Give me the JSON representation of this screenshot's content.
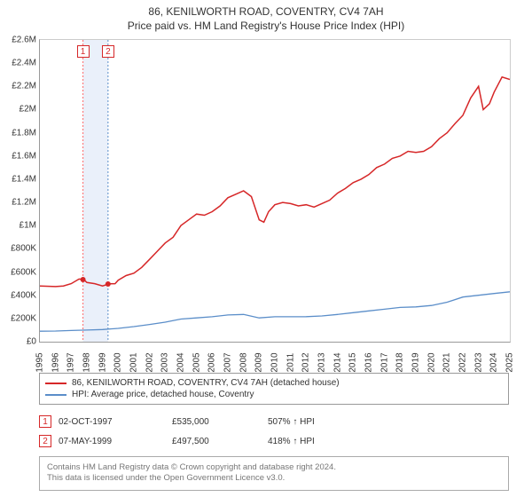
{
  "title": {
    "address": "86, KENILWORTH ROAD, COVENTRY, CV4 7AH",
    "subtitle": "Price paid vs. HM Land Registry's House Price Index (HPI)"
  },
  "chart": {
    "type": "line",
    "background_color": "#ffffff",
    "axis_color": "#999999",
    "label_fontsize": 10,
    "x_min": 1995,
    "x_max": 2025,
    "y_min": 0,
    "y_max": 2600000,
    "y_ticks": [
      0,
      200000,
      400000,
      600000,
      800000,
      1000000,
      1200000,
      1400000,
      1600000,
      1800000,
      2000000,
      2200000,
      2400000,
      2600000
    ],
    "y_tick_labels": [
      "£0",
      "£200K",
      "£400K",
      "£600K",
      "£800K",
      "£1M",
      "£1.2M",
      "£1.4M",
      "£1.6M",
      "£1.8M",
      "£2M",
      "£2.2M",
      "£2.4M",
      "£2.6M"
    ],
    "x_ticks": [
      1995,
      1996,
      1997,
      1998,
      1999,
      2000,
      2001,
      2002,
      2003,
      2004,
      2005,
      2006,
      2007,
      2008,
      2009,
      2010,
      2011,
      2012,
      2013,
      2014,
      2015,
      2016,
      2017,
      2018,
      2019,
      2020,
      2021,
      2022,
      2023,
      2024,
      2025
    ],
    "x_tick_labels": [
      "1995",
      "1996",
      "1997",
      "1998",
      "1999",
      "2000",
      "2001",
      "2002",
      "2003",
      "2004",
      "2005",
      "2006",
      "2007",
      "2008",
      "2009",
      "2010",
      "2011",
      "2012",
      "2013",
      "2014",
      "2015",
      "2016",
      "2017",
      "2018",
      "2019",
      "2020",
      "2021",
      "2022",
      "2023",
      "2024",
      "2025"
    ],
    "series": [
      {
        "name": "property",
        "label": "86, KENILWORTH ROAD, COVENTRY, CV4 7AH (detached house)",
        "color": "#d62728",
        "line_width": 1.5,
        "data": [
          [
            1995,
            480000
          ],
          [
            1996,
            475000
          ],
          [
            1996.5,
            480000
          ],
          [
            1997,
            500000
          ],
          [
            1997.5,
            540000
          ],
          [
            1997.8,
            535000
          ],
          [
            1998,
            510000
          ],
          [
            1998.5,
            500000
          ],
          [
            1999,
            480000
          ],
          [
            1999.4,
            497500
          ],
          [
            1999.8,
            500000
          ],
          [
            2000,
            530000
          ],
          [
            2000.5,
            570000
          ],
          [
            2001,
            590000
          ],
          [
            2001.5,
            640000
          ],
          [
            2002,
            710000
          ],
          [
            2002.5,
            780000
          ],
          [
            2003,
            850000
          ],
          [
            2003.5,
            900000
          ],
          [
            2004,
            1000000
          ],
          [
            2004.5,
            1050000
          ],
          [
            2005,
            1100000
          ],
          [
            2005.5,
            1090000
          ],
          [
            2006,
            1120000
          ],
          [
            2006.5,
            1170000
          ],
          [
            2007,
            1240000
          ],
          [
            2007.5,
            1270000
          ],
          [
            2008,
            1300000
          ],
          [
            2008.5,
            1250000
          ],
          [
            2009,
            1050000
          ],
          [
            2009.3,
            1030000
          ],
          [
            2009.6,
            1120000
          ],
          [
            2010,
            1180000
          ],
          [
            2010.5,
            1200000
          ],
          [
            2011,
            1190000
          ],
          [
            2011.5,
            1170000
          ],
          [
            2012,
            1180000
          ],
          [
            2012.5,
            1160000
          ],
          [
            2013,
            1190000
          ],
          [
            2013.5,
            1220000
          ],
          [
            2014,
            1280000
          ],
          [
            2014.5,
            1320000
          ],
          [
            2015,
            1370000
          ],
          [
            2015.5,
            1400000
          ],
          [
            2016,
            1440000
          ],
          [
            2016.5,
            1500000
          ],
          [
            2017,
            1530000
          ],
          [
            2017.5,
            1580000
          ],
          [
            2018,
            1600000
          ],
          [
            2018.5,
            1640000
          ],
          [
            2019,
            1630000
          ],
          [
            2019.5,
            1640000
          ],
          [
            2020,
            1680000
          ],
          [
            2020.5,
            1750000
          ],
          [
            2021,
            1800000
          ],
          [
            2021.5,
            1880000
          ],
          [
            2022,
            1950000
          ],
          [
            2022.5,
            2100000
          ],
          [
            2023,
            2200000
          ],
          [
            2023.3,
            2000000
          ],
          [
            2023.7,
            2050000
          ],
          [
            2024,
            2150000
          ],
          [
            2024.5,
            2280000
          ],
          [
            2025,
            2260000
          ]
        ]
      },
      {
        "name": "hpi",
        "label": "HPI: Average price, detached house, Coventry",
        "color": "#5b8ec9",
        "line_width": 1.3,
        "data": [
          [
            1995,
            90000
          ],
          [
            1996,
            92000
          ],
          [
            1997,
            96000
          ],
          [
            1998,
            100000
          ],
          [
            1999,
            105000
          ],
          [
            2000,
            115000
          ],
          [
            2001,
            130000
          ],
          [
            2002,
            148000
          ],
          [
            2003,
            168000
          ],
          [
            2004,
            195000
          ],
          [
            2005,
            205000
          ],
          [
            2006,
            215000
          ],
          [
            2007,
            230000
          ],
          [
            2008,
            235000
          ],
          [
            2009,
            205000
          ],
          [
            2010,
            215000
          ],
          [
            2011,
            215000
          ],
          [
            2012,
            216000
          ],
          [
            2013,
            222000
          ],
          [
            2014,
            235000
          ],
          [
            2015,
            250000
          ],
          [
            2016,
            265000
          ],
          [
            2017,
            280000
          ],
          [
            2018,
            295000
          ],
          [
            2019,
            300000
          ],
          [
            2020,
            312000
          ],
          [
            2021,
            340000
          ],
          [
            2022,
            385000
          ],
          [
            2023,
            400000
          ],
          [
            2024,
            415000
          ],
          [
            2025,
            430000
          ]
        ]
      }
    ],
    "markers": [
      {
        "id": 1,
        "x": 1997.75,
        "y": 535000,
        "dot_color": "#d62728",
        "dot_radius": 3,
        "line_color": "#ff6b6b",
        "line_dash": "2,2"
      },
      {
        "id": 2,
        "x": 1999.35,
        "y": 497500,
        "dot_color": "#d62728",
        "dot_radius": 3,
        "line_color": "#5b8ec9",
        "line_dash": "2,2"
      }
    ],
    "highlight_band": {
      "x_start": 1997.75,
      "x_end": 1999.35,
      "color": "#eaf0fa"
    },
    "chart_marker_labels": [
      {
        "id": "1",
        "x": 1997.75
      },
      {
        "id": "2",
        "x": 1999.35
      }
    ]
  },
  "legend": {
    "items": [
      {
        "label": "86, KENILWORTH ROAD, COVENTRY, CV4 7AH (detached house)",
        "color": "#d62728"
      },
      {
        "label": "HPI: Average price, detached house, Coventry",
        "color": "#5b8ec9"
      }
    ]
  },
  "events": [
    {
      "id": "1",
      "date": "02-OCT-1997",
      "price": "£535,000",
      "change": "507% ↑ HPI"
    },
    {
      "id": "2",
      "date": "07-MAY-1999",
      "price": "£497,500",
      "change": "418% ↑ HPI"
    }
  ],
  "footer": {
    "line1": "Contains HM Land Registry data © Crown copyright and database right 2024.",
    "line2": "This data is licensed under the Open Government Licence v3.0."
  }
}
